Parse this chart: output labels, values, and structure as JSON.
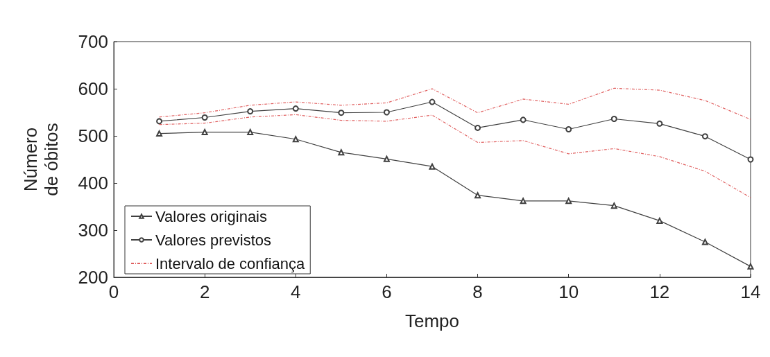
{
  "chart_data": {
    "type": "line",
    "xlabel": "Tempo",
    "ylabel": "Número\nde óbitos",
    "x": [
      1,
      2,
      3,
      4,
      5,
      6,
      7,
      8,
      9,
      10,
      11,
      12,
      13,
      14
    ],
    "series": [
      {
        "name": "Valores originais",
        "color": "#404040",
        "marker": "triangle",
        "values": [
          505,
          508,
          508,
          493,
          465,
          451,
          435,
          374,
          362,
          362,
          352,
          320,
          275,
          223
        ]
      },
      {
        "name": "Valores previstos",
        "color": "#404040",
        "marker": "circle",
        "values": [
          531,
          539,
          552,
          558,
          549,
          550,
          572,
          517,
          534,
          514,
          536,
          526,
          499,
          450
        ]
      },
      {
        "name": "Intervalo de confiança",
        "color": "#e06060",
        "marker": "none",
        "line_style": "dashed",
        "values": [
          540,
          549,
          565,
          572,
          565,
          570,
          600,
          549,
          578,
          567,
          601,
          597,
          575,
          535
        ]
      },
      {
        "color": "#e06060",
        "marker": "none",
        "line_style": "dashed",
        "values": [
          524,
          527,
          540,
          545,
          533,
          531,
          544,
          486,
          490,
          462,
          473,
          456,
          425,
          369
        ]
      }
    ],
    "xlim": [
      0,
      14
    ],
    "xticks": [
      0,
      2,
      4,
      6,
      8,
      10,
      12,
      14
    ],
    "ylim": [
      200,
      700
    ],
    "yticks": [
      200,
      300,
      400,
      500,
      600,
      700
    ],
    "grid": false,
    "legend": "bottom left"
  }
}
